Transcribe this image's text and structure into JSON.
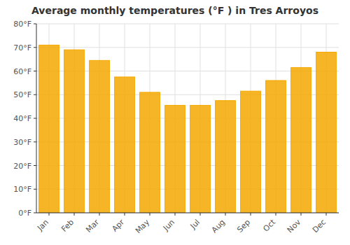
{
  "chart_data": {
    "type": "bar",
    "title": "Average monthly temperatures (°F ) in Tres Arroyos",
    "categories": [
      "Jan",
      "Feb",
      "Mar",
      "Apr",
      "May",
      "Jun",
      "Jul",
      "Aug",
      "Sep",
      "Oct",
      "Nov",
      "Dec"
    ],
    "values": [
      71,
      69,
      64.5,
      57.5,
      51,
      45.5,
      45.5,
      47.5,
      51.5,
      56,
      61.5,
      68
    ],
    "color": "#F5A800",
    "ylim": [
      0,
      80
    ],
    "yticks": [
      {
        "value": 0,
        "label": "0°F"
      },
      {
        "value": 10,
        "label": "10°F"
      },
      {
        "value": 20,
        "label": "20°F"
      },
      {
        "value": 30,
        "label": "30°F"
      },
      {
        "value": 40,
        "label": "40°F"
      },
      {
        "value": 50,
        "label": "50°F"
      },
      {
        "value": 60,
        "label": "60°F"
      },
      {
        "value": 70,
        "label": "70°F"
      },
      {
        "value": 80,
        "label": "80°F"
      }
    ],
    "grid": true
  }
}
